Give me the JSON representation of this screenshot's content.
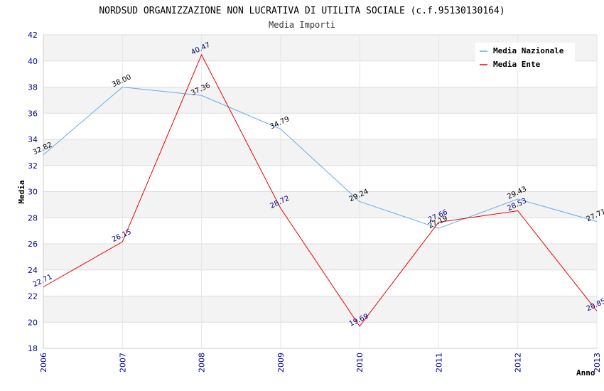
{
  "chart_data": {
    "type": "line",
    "title": "NORDSUD ORGANIZZAZIONE NON LUCRATIVA DI UTILITA SOCIALE (c.f.95130130164)",
    "subtitle": "Media Importi",
    "xlabel": "Anno",
    "ylabel": "Media",
    "x": [
      "2006",
      "2007",
      "2008",
      "2009",
      "2010",
      "2011",
      "2012",
      "2013"
    ],
    "ylim": [
      18,
      42
    ],
    "yticks": [
      18,
      20,
      22,
      24,
      26,
      28,
      30,
      32,
      34,
      36,
      38,
      40,
      42
    ],
    "grid": true,
    "legend_position": "top-right",
    "series": [
      {
        "name": "Media Nazionale",
        "color": "#66aaee",
        "label_color": "#000000",
        "values": [
          32.82,
          38.0,
          37.36,
          34.79,
          29.24,
          27.19,
          29.43,
          27.71
        ],
        "labels": [
          "32.82",
          "38.00",
          "37.36",
          "34.79",
          "29.24",
          "27.19",
          "29.43",
          "27.71"
        ]
      },
      {
        "name": "Media Ente",
        "color": "#ee0000",
        "label_color": "#000080",
        "values": [
          22.71,
          26.15,
          40.47,
          28.72,
          19.69,
          27.66,
          28.53,
          20.85
        ],
        "labels": [
          "22.71",
          "26.15",
          "40.47",
          "28.72",
          "19.69",
          "27.66",
          "28.53",
          "20.85"
        ]
      }
    ]
  }
}
